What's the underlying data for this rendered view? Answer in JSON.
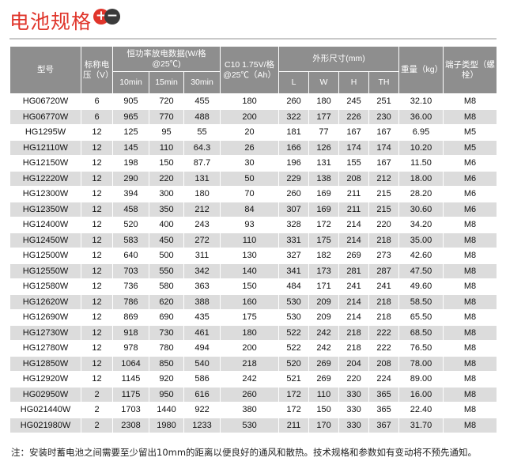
{
  "title": "电池规格",
  "title_icon": "plus-minus-icon",
  "colors": {
    "title": "#e0352b",
    "header_bg": "#8e8e8e",
    "stripe": "#dcdcdc"
  },
  "header": {
    "model": "型号",
    "voltage": "标称电压（V）",
    "discharge_group": "恒功率放电数据(W/格@25℃)",
    "d10": "10min",
    "d15": "15min",
    "d30": "30min",
    "capacity": "C10 1.75V/格@25℃（Ah）",
    "dims_group": "外形尺寸(mm)",
    "L": "L",
    "W": "W",
    "H": "H",
    "TH": "TH",
    "weight": "重量（kg）",
    "terminal": "端子类型（螺栓）"
  },
  "rows": [
    [
      "HG06720W",
      "6",
      "905",
      "720",
      "455",
      "180",
      "260",
      "180",
      "245",
      "251",
      "32.10",
      "M8"
    ],
    [
      "HG06770W",
      "6",
      "965",
      "770",
      "488",
      "200",
      "322",
      "177",
      "226",
      "230",
      "36.00",
      "M8"
    ],
    [
      "HG1295W",
      "12",
      "125",
      "95",
      "55",
      "20",
      "181",
      "77",
      "167",
      "167",
      "6.95",
      "M5"
    ],
    [
      "HG12110W",
      "12",
      "145",
      "110",
      "64.3",
      "26",
      "166",
      "126",
      "174",
      "174",
      "10.20",
      "M5"
    ],
    [
      "HG12150W",
      "12",
      "198",
      "150",
      "87.7",
      "30",
      "196",
      "131",
      "155",
      "167",
      "11.50",
      "M6"
    ],
    [
      "HG12220W",
      "12",
      "290",
      "220",
      "131",
      "50",
      "229",
      "138",
      "208",
      "212",
      "18.00",
      "M6"
    ],
    [
      "HG12300W",
      "12",
      "394",
      "300",
      "180",
      "70",
      "260",
      "169",
      "211",
      "215",
      "28.20",
      "M6"
    ],
    [
      "HG12350W",
      "12",
      "458",
      "350",
      "212",
      "84",
      "307",
      "169",
      "211",
      "215",
      "30.60",
      "M6"
    ],
    [
      "HG12400W",
      "12",
      "520",
      "400",
      "243",
      "93",
      "328",
      "172",
      "214",
      "220",
      "34.20",
      "M8"
    ],
    [
      "HG12450W",
      "12",
      "583",
      "450",
      "272",
      "110",
      "331",
      "175",
      "214",
      "218",
      "35.00",
      "M8"
    ],
    [
      "HG12500W",
      "12",
      "640",
      "500",
      "311",
      "130",
      "327",
      "182",
      "269",
      "273",
      "42.60",
      "M8"
    ],
    [
      "HG12550W",
      "12",
      "703",
      "550",
      "342",
      "140",
      "341",
      "173",
      "281",
      "287",
      "47.50",
      "M8"
    ],
    [
      "HG12580W",
      "12",
      "736",
      "580",
      "363",
      "150",
      "484",
      "171",
      "241",
      "241",
      "49.60",
      "M8"
    ],
    [
      "HG12620W",
      "12",
      "786",
      "620",
      "388",
      "160",
      "530",
      "209",
      "214",
      "218",
      "58.50",
      "M8"
    ],
    [
      "HG12690W",
      "12",
      "869",
      "690",
      "435",
      "175",
      "530",
      "209",
      "214",
      "218",
      "65.50",
      "M8"
    ],
    [
      "HG12730W",
      "12",
      "918",
      "730",
      "461",
      "180",
      "522",
      "242",
      "218",
      "222",
      "68.50",
      "M8"
    ],
    [
      "HG12780W",
      "12",
      "978",
      "780",
      "494",
      "200",
      "522",
      "242",
      "218",
      "222",
      "76.50",
      "M8"
    ],
    [
      "HG12850W",
      "12",
      "1064",
      "850",
      "540",
      "218",
      "520",
      "269",
      "204",
      "208",
      "78.00",
      "M8"
    ],
    [
      "HG12920W",
      "12",
      "1145",
      "920",
      "586",
      "242",
      "521",
      "269",
      "220",
      "224",
      "89.00",
      "M8"
    ],
    [
      "HG02950W",
      "2",
      "1175",
      "950",
      "616",
      "260",
      "172",
      "110",
      "330",
      "365",
      "16.00",
      "M8"
    ],
    [
      "HG021440W",
      "2",
      "1703",
      "1440",
      "922",
      "380",
      "172",
      "150",
      "330",
      "365",
      "22.40",
      "M8"
    ],
    [
      "HG021980W",
      "2",
      "2308",
      "1980",
      "1233",
      "530",
      "211",
      "170",
      "330",
      "367",
      "31.70",
      "M8"
    ]
  ],
  "footnote": "注：安装时蓄电池之间需要至少留出10mm的距离以便良好的通风和散热。技术规格和参数如有变动将不预先通知。"
}
